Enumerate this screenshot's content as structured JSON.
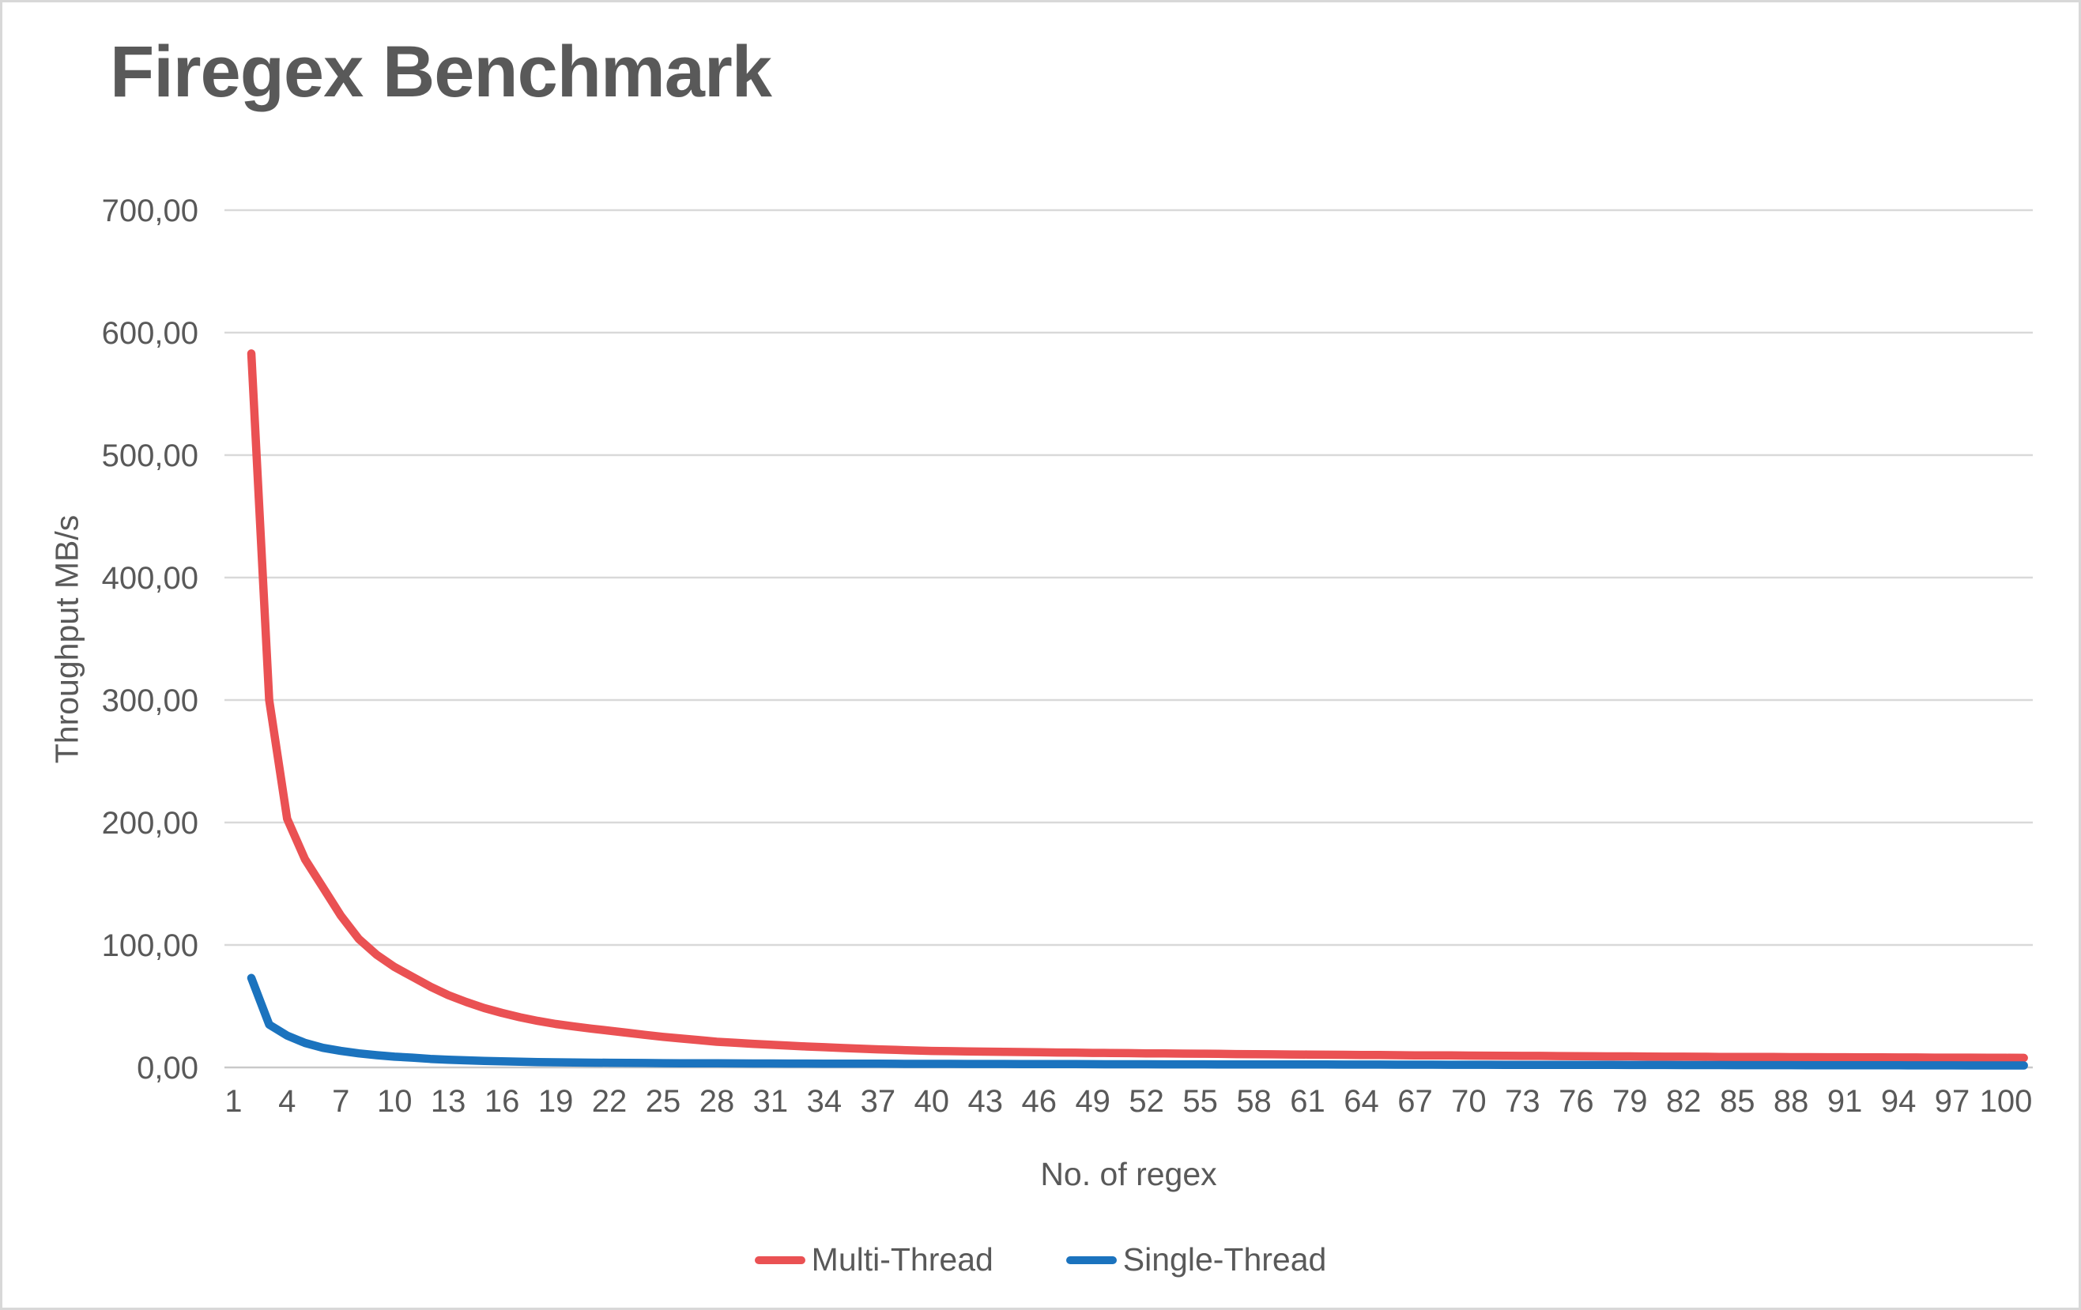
{
  "title": "Firegex Benchmark",
  "colors": {
    "text": "#595959",
    "gridline": "#d9d9d9",
    "axis_line": "#c9c9c9",
    "background": "#ffffff",
    "multi_thread": "#ea5153",
    "single_thread": "#1b73be"
  },
  "chart_data": {
    "type": "line",
    "title": "Firegex Benchmark",
    "xlabel": "No. of regex",
    "ylabel": "Throughput MB/s",
    "legend_position": "bottom",
    "grid": "horizontal",
    "number_format": "comma-decimal",
    "ylim": [
      0,
      700
    ],
    "xlim": [
      1,
      101
    ],
    "y_tick_values": [
      0,
      100,
      200,
      300,
      400,
      500,
      600,
      700
    ],
    "y_tick_labels": [
      "0,00",
      "100,00",
      "200,00",
      "300,00",
      "400,00",
      "500,00",
      "600,00",
      "700,00"
    ],
    "x_ticks": [
      1,
      4,
      7,
      10,
      13,
      16,
      19,
      22,
      25,
      28,
      31,
      34,
      37,
      40,
      43,
      46,
      49,
      52,
      55,
      58,
      61,
      64,
      67,
      70,
      73,
      76,
      79,
      82,
      85,
      88,
      91,
      94,
      97,
      100
    ],
    "x": [
      2,
      3,
      4,
      5,
      6,
      7,
      8,
      9,
      10,
      11,
      12,
      13,
      14,
      15,
      16,
      17,
      18,
      19,
      20,
      21,
      22,
      23,
      24,
      25,
      26,
      27,
      28,
      29,
      30,
      31,
      32,
      33,
      34,
      35,
      36,
      37,
      38,
      39,
      40,
      41,
      42,
      43,
      44,
      45,
      46,
      47,
      48,
      49,
      50,
      51,
      52,
      53,
      54,
      55,
      56,
      57,
      58,
      59,
      60,
      61,
      62,
      63,
      64,
      65,
      66,
      67,
      68,
      69,
      70,
      71,
      72,
      73,
      74,
      75,
      76,
      77,
      78,
      79,
      80,
      81,
      82,
      83,
      84,
      85,
      86,
      87,
      88,
      89,
      90,
      91,
      92,
      93,
      94,
      95,
      96,
      97,
      98,
      99,
      100,
      101
    ],
    "series": [
      {
        "name": "Multi-Thread",
        "color": "#ea5153",
        "values": [
          583,
          300,
          203,
          170,
          147,
          124,
          105,
          92,
          82,
          74,
          66,
          59,
          53.5,
          48.5,
          44.5,
          41,
          38,
          35.5,
          33.5,
          31.7,
          30,
          28.3,
          26.6,
          25,
          23.6,
          22.3,
          21,
          20.1,
          19.3,
          18.5,
          17.8,
          17.1,
          16.5,
          15.9,
          15.3,
          14.8,
          14.3,
          13.9,
          13.5,
          13.3,
          13.1,
          12.9,
          12.7,
          12.6,
          12.4,
          12.2,
          12.1,
          11.9,
          11.8,
          11.7,
          11.5,
          11.4,
          11.3,
          11.2,
          11.1,
          10.9,
          10.8,
          10.7,
          10.6,
          10.5,
          10.4,
          10.3,
          10.2,
          10.1,
          10,
          9.9,
          9.8,
          9.8,
          9.7,
          9.6,
          9.5,
          9.4,
          9.4,
          9.3,
          9.2,
          9.1,
          9,
          9,
          8.9,
          8.8,
          8.8,
          8.7,
          8.6,
          8.6,
          8.5,
          8.5,
          8.4,
          8.4,
          8.3,
          8.3,
          8.2,
          8.2,
          8.1,
          8.1,
          8,
          8,
          8,
          7.9,
          7.9,
          7.8
        ]
      },
      {
        "name": "Single-Thread",
        "color": "#1b73be",
        "values": [
          73,
          35,
          26,
          20,
          16,
          13.5,
          11.5,
          10,
          8.8,
          8,
          7,
          6.3,
          5.8,
          5.3,
          5,
          4.7,
          4.4,
          4.2,
          4,
          3.9,
          3.8,
          3.7,
          3.6,
          3.5,
          3.45,
          3.4,
          3.35,
          3.3,
          3.25,
          3.2,
          3.17,
          3.13,
          3.1,
          3.07,
          3.03,
          3,
          2.97,
          2.93,
          2.9,
          2.88,
          2.86,
          2.84,
          2.82,
          2.8,
          2.76,
          2.72,
          2.68,
          2.64,
          2.6,
          2.58,
          2.56,
          2.54,
          2.52,
          2.5,
          2.48,
          2.46,
          2.44,
          2.42,
          2.4,
          2.38,
          2.36,
          2.34,
          2.32,
          2.3,
          2.28,
          2.26,
          2.24,
          2.22,
          2.2,
          2.18,
          2.16,
          2.14,
          2.12,
          2.1,
          2.08,
          2.06,
          2.04,
          2.02,
          2,
          1.98,
          1.96,
          1.94,
          1.92,
          1.9,
          1.88,
          1.86,
          1.84,
          1.82,
          1.8,
          1.78,
          1.76,
          1.74,
          1.72,
          1.7,
          1.68,
          1.66,
          1.64,
          1.62,
          1.6,
          1.6
        ]
      }
    ]
  }
}
